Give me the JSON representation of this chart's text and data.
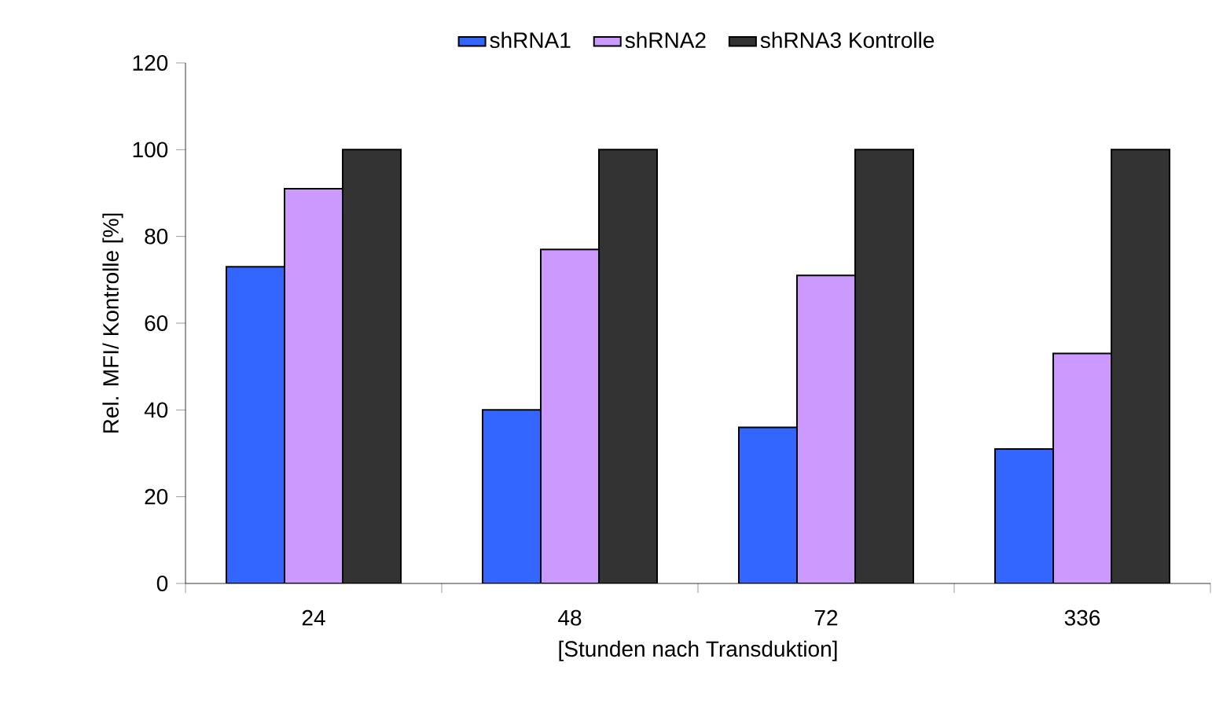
{
  "chart_data": {
    "type": "bar",
    "xlabel": "[Stunden nach Transduktion]",
    "ylabel": "Rel. MFI/ Kontrolle [%]",
    "categories": [
      "24",
      "48",
      "72",
      "336"
    ],
    "series": [
      {
        "name": "shRNA1",
        "color": "#3366ff",
        "values": [
          73,
          40,
          36,
          31
        ]
      },
      {
        "name": "shRNA2",
        "color": "#cc99ff",
        "values": [
          91,
          77,
          71,
          53
        ]
      },
      {
        "name": "shRNA3 Kontrolle",
        "color": "#333333",
        "values": [
          100,
          100,
          100,
          100
        ]
      }
    ],
    "ylim": [
      0,
      120
    ],
    "yticks": [
      0,
      20,
      40,
      60,
      80,
      100,
      120
    ],
    "grid": false,
    "legend": "top"
  }
}
